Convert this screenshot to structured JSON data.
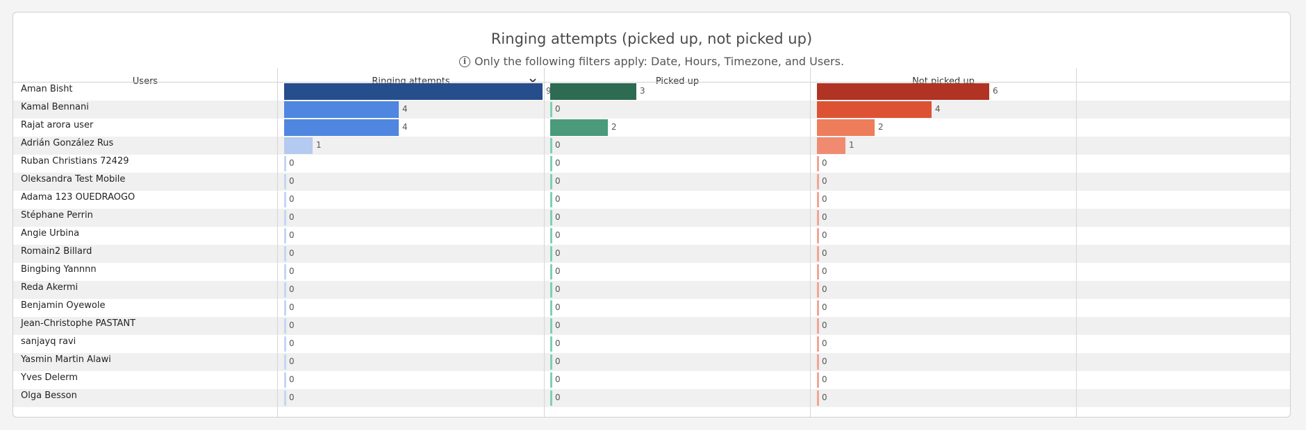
{
  "title": "Ringing attempts (picked up, not picked up)",
  "subtitle": "Only the following filters apply: Date, Hours, Timezone, and Users.",
  "columns": {
    "users": "Users",
    "ringing": "Ringing attempts",
    "picked": "Picked up",
    "not_picked": "Not picked up"
  },
  "colors": {
    "ringing": {
      "high": "#264d8c",
      "mid": "#4f86df",
      "low": "#b4caf0",
      "zero": "#c5d6f4"
    },
    "picked": {
      "high": "#2d6b52",
      "mid": "#4a9a7b",
      "zero": "#7fd0b2"
    },
    "not_picked": {
      "high": "#b03323",
      "mid": "#dc5233",
      "low": "#ee7d5c",
      "lower": "#f08b72",
      "zero": "#f2a592"
    }
  },
  "chart_data": {
    "type": "bar",
    "orientation": "horizontal",
    "categories": [
      "Aman Bisht",
      "Kamal Bennani",
      "Rajat arora user",
      "Adrián González Rus",
      "Ruban Christians 72429",
      "Oleksandra Test Mobile",
      "Adama 123 OUEDRAOGO",
      "Stéphane Perrin",
      "Angie Urbina",
      "Romain2 Billard",
      "Bingbing Yannnn",
      "Reda Akermi",
      "Benjamin Oyewole",
      "Jean-Christophe PASTANT",
      "sanjayq ravi",
      "Yasmin Martin Alawi",
      "Yves Delerm",
      "Olga Besson"
    ],
    "series": [
      {
        "name": "Ringing attempts",
        "values": [
          9,
          4,
          4,
          1,
          0,
          0,
          0,
          0,
          0,
          0,
          0,
          0,
          0,
          0,
          0,
          0,
          0,
          0
        ]
      },
      {
        "name": "Picked up",
        "values": [
          3,
          0,
          2,
          0,
          0,
          0,
          0,
          0,
          0,
          0,
          0,
          0,
          0,
          0,
          0,
          0,
          0,
          0
        ]
      },
      {
        "name": "Not picked up",
        "values": [
          6,
          4,
          2,
          1,
          0,
          0,
          0,
          0,
          0,
          0,
          0,
          0,
          0,
          0,
          0,
          0,
          0,
          0
        ]
      }
    ],
    "sort": "Ringing attempts descending"
  }
}
